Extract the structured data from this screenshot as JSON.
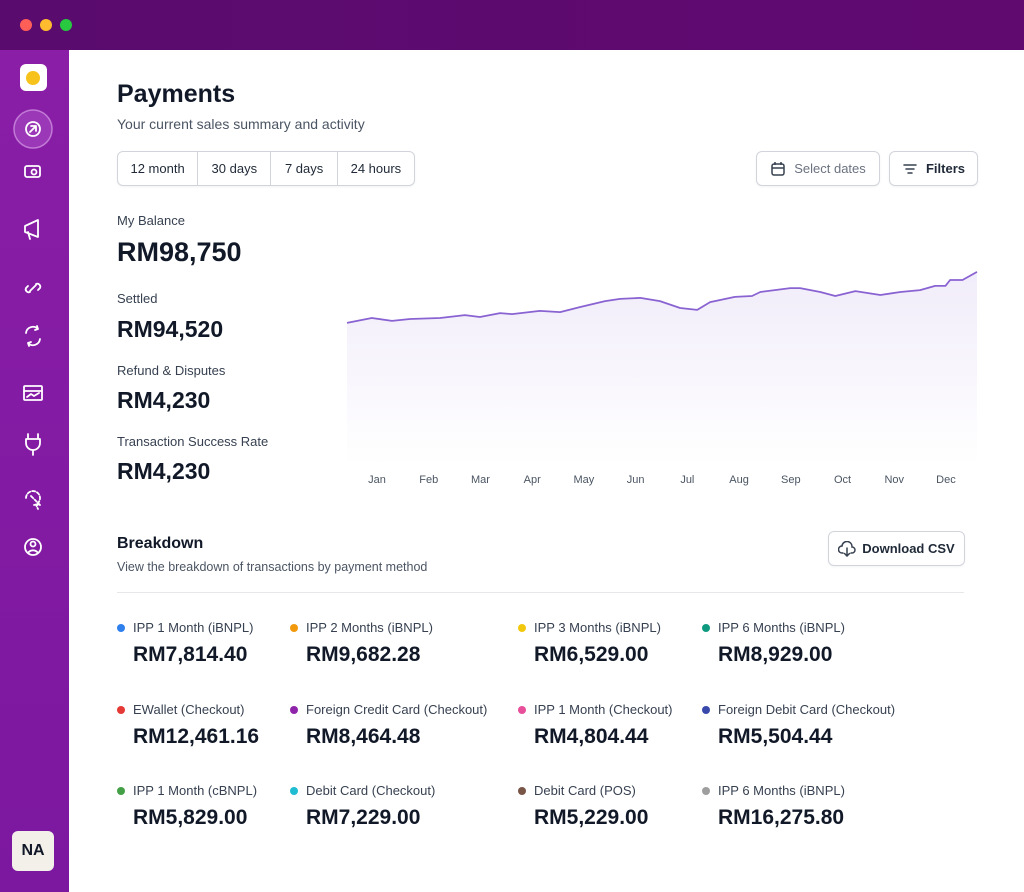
{
  "sidebar": {
    "avatar": "NA"
  },
  "header": {
    "title": "Payments",
    "subtitle": "Your current sales summary and activity"
  },
  "time_filters": [
    "12 month",
    "30 days",
    "7 days",
    "24 hours"
  ],
  "buttons": {
    "select_dates": "Select dates",
    "filters": "Filters",
    "download": "Download CSV"
  },
  "stats": [
    {
      "label": "My Balance",
      "value": "RM98,750"
    },
    {
      "label": "Settled",
      "value": "RM94,520"
    },
    {
      "label": "Refund & Disputes",
      "value": "RM4,230"
    },
    {
      "label": "Transaction Success Rate",
      "value": "RM4,230"
    }
  ],
  "chart_data": {
    "type": "line",
    "color": "#8a63d2",
    "x": [
      -0.58,
      -0.1,
      0.29,
      0.64,
      1.22,
      1.7,
      1.99,
      2.38,
      2.61,
      3.15,
      3.54,
      3.93,
      4.41,
      4.7,
      5.09,
      5.47,
      5.86,
      6.19,
      6.44,
      6.92,
      7.25,
      7.41,
      7.99,
      8.18,
      8.57,
      8.86,
      9.25,
      9.73,
      10.12,
      10.5,
      10.79,
      10.99,
      11.08,
      11.32,
      11.6
    ],
    "values": [
      58,
      60,
      58.8,
      59.6,
      60,
      61.2,
      60.4,
      62,
      61.6,
      62.9,
      62.4,
      64.5,
      66.9,
      67.8,
      68.2,
      66.9,
      64.1,
      63.3,
      66.5,
      68.6,
      69,
      70.6,
      72.2,
      72.2,
      70.6,
      69,
      71,
      69.4,
      70.6,
      71.4,
      73.1,
      73.1,
      75.5,
      75.5,
      78.8
    ],
    "xlim": [
      -0.58,
      11.6
    ],
    "ylim": [
      0,
      100
    ],
    "xticks": [
      {
        "value": 0,
        "label": "Jan"
      },
      {
        "value": 1,
        "label": "Feb"
      },
      {
        "value": 2,
        "label": "Mar"
      },
      {
        "value": 3,
        "label": "Apr"
      },
      {
        "value": 4,
        "label": "May"
      },
      {
        "value": 5,
        "label": "Jun"
      },
      {
        "value": 6,
        "label": "Jul"
      },
      {
        "value": 7,
        "label": "Aug"
      },
      {
        "value": 8,
        "label": "Sep"
      },
      {
        "value": 9,
        "label": "Oct"
      },
      {
        "value": 10,
        "label": "Nov"
      },
      {
        "value": 11,
        "label": "Dec"
      }
    ]
  },
  "breakdown": {
    "title": "Breakdown",
    "subtitle": "View the breakdown of transactions by payment method",
    "items": [
      {
        "name": "IPP 1 Month (iBNPL)",
        "amount": "RM7,814.40",
        "color": "#2f80ed"
      },
      {
        "name": "IPP 2 Months (iBNPL)",
        "amount": "RM9,682.28",
        "color": "#f2990e"
      },
      {
        "name": "IPP 3 Months (iBNPL)",
        "amount": "RM6,529.00",
        "color": "#f2c80f"
      },
      {
        "name": "IPP 6 Months (iBNPL)",
        "amount": "RM8,929.00",
        "color": "#0f9a7f"
      },
      {
        "name": "EWallet (Checkout)",
        "amount": "RM12,461.16",
        "color": "#e53935"
      },
      {
        "name": "Foreign Credit Card (Checkout)",
        "amount": "RM8,464.48",
        "color": "#8e24aa"
      },
      {
        "name": "IPP 1 Month (Checkout)",
        "amount": "RM4,804.44",
        "color": "#e84f9a"
      },
      {
        "name": "Foreign Debit Card (Checkout)",
        "amount": "RM5,504.44",
        "color": "#3949ab"
      },
      {
        "name": "IPP 1 Month (cBNPL)",
        "amount": "RM5,829.00",
        "color": "#43a047"
      },
      {
        "name": "Debit Card (Checkout)",
        "amount": "RM7,229.00",
        "color": "#1fbcd2"
      },
      {
        "name": "Debit Card (POS)",
        "amount": "RM5,229.00",
        "color": "#795548"
      },
      {
        "name": "IPP 6 Months (iBNPL)",
        "amount": "RM16,275.80",
        "color": "#9e9e9e"
      }
    ]
  }
}
